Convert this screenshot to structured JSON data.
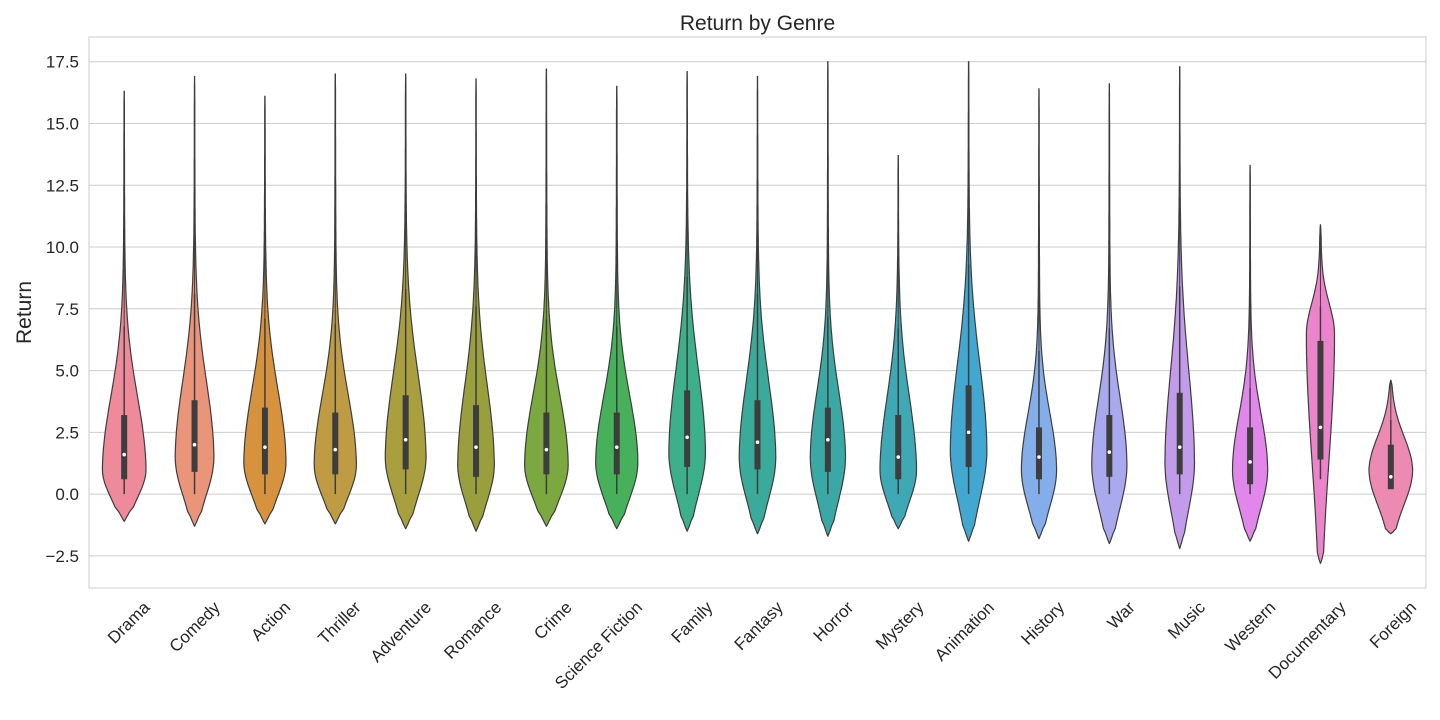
{
  "chart_data": {
    "type": "violin",
    "title": "Return by Genre",
    "xlabel": "",
    "ylabel": "Return",
    "ylim": [
      -3.8,
      18.5
    ],
    "yticks": [
      -2.5,
      0.0,
      2.5,
      5.0,
      7.5,
      10.0,
      12.5,
      15.0,
      17.5
    ],
    "ytick_labels": [
      "−2.5",
      "0.0",
      "2.5",
      "5.0",
      "7.5",
      "10.0",
      "12.5",
      "15.0",
      "17.5"
    ],
    "grid": true,
    "categories": [
      "Drama",
      "Comedy",
      "Action",
      "Thriller",
      "Adventure",
      "Romance",
      "Crime",
      "Science Fiction",
      "Family",
      "Fantasy",
      "Horror",
      "Mystery",
      "Animation",
      "History",
      "War",
      "Music",
      "Western",
      "Documentary",
      "Foreign"
    ],
    "colors": [
      "#ef8a9a",
      "#ea947a",
      "#d7923e",
      "#bf9b43",
      "#a99f3e",
      "#999f3c",
      "#7ba83f",
      "#46b15a",
      "#3bb08a",
      "#3aab9a",
      "#3aa9a6",
      "#3ea8b4",
      "#43a8d1",
      "#84aeea",
      "#a8a9ee",
      "#c29ceb",
      "#e186ea",
      "#ec84cb",
      "#ec8ab2"
    ],
    "violins": [
      {
        "min": -1.1,
        "max": 16.3,
        "q1": 0.6,
        "median": 1.6,
        "q3": 3.2,
        "whisker_lo": 0.0,
        "whisker_hi": 6.8,
        "mode": 1.0,
        "maxw": 0.62
      },
      {
        "min": -1.3,
        "max": 16.9,
        "q1": 0.9,
        "median": 2.0,
        "q3": 3.8,
        "whisker_lo": 0.0,
        "whisker_hi": 8.1,
        "mode": 1.5,
        "maxw": 0.55
      },
      {
        "min": -1.2,
        "max": 16.1,
        "q1": 0.8,
        "median": 1.9,
        "q3": 3.5,
        "whisker_lo": 0.0,
        "whisker_hi": 7.1,
        "mode": 1.3,
        "maxw": 0.6
      },
      {
        "min": -1.2,
        "max": 17.0,
        "q1": 0.8,
        "median": 1.8,
        "q3": 3.3,
        "whisker_lo": 0.0,
        "whisker_hi": 6.9,
        "mode": 1.2,
        "maxw": 0.6
      },
      {
        "min": -1.4,
        "max": 17.0,
        "q1": 1.0,
        "median": 2.2,
        "q3": 4.0,
        "whisker_lo": 0.0,
        "whisker_hi": 8.3,
        "mode": 1.5,
        "maxw": 0.58
      },
      {
        "min": -1.5,
        "max": 16.8,
        "q1": 0.7,
        "median": 1.9,
        "q3": 3.6,
        "whisker_lo": 0.0,
        "whisker_hi": 7.6,
        "mode": 1.2,
        "maxw": 0.52
      },
      {
        "min": -1.3,
        "max": 17.2,
        "q1": 0.8,
        "median": 1.8,
        "q3": 3.3,
        "whisker_lo": 0.0,
        "whisker_hi": 7.1,
        "mode": 1.2,
        "maxw": 0.62
      },
      {
        "min": -1.4,
        "max": 16.5,
        "q1": 0.8,
        "median": 1.9,
        "q3": 3.3,
        "whisker_lo": 0.0,
        "whisker_hi": 6.8,
        "mode": 1.3,
        "maxw": 0.6
      },
      {
        "min": -1.5,
        "max": 17.1,
        "q1": 1.1,
        "median": 2.3,
        "q3": 4.2,
        "whisker_lo": 0.0,
        "whisker_hi": 8.8,
        "mode": 1.7,
        "maxw": 0.52
      },
      {
        "min": -1.6,
        "max": 16.9,
        "q1": 1.0,
        "median": 2.1,
        "q3": 3.8,
        "whisker_lo": 0.0,
        "whisker_hi": 8.1,
        "mode": 1.5,
        "maxw": 0.52
      },
      {
        "min": -1.7,
        "max": 17.5,
        "q1": 0.9,
        "median": 2.2,
        "q3": 3.5,
        "whisker_lo": 0.0,
        "whisker_hi": 7.2,
        "mode": 1.5,
        "maxw": 0.5
      },
      {
        "min": -1.4,
        "max": 13.7,
        "q1": 0.6,
        "median": 1.5,
        "q3": 3.2,
        "whisker_lo": 0.0,
        "whisker_hi": 6.7,
        "mode": 1.0,
        "maxw": 0.52
      },
      {
        "min": -1.9,
        "max": 17.5,
        "q1": 1.1,
        "median": 2.5,
        "q3": 4.4,
        "whisker_lo": 0.0,
        "whisker_hi": 9.3,
        "mode": 1.8,
        "maxw": 0.52
      },
      {
        "min": -1.8,
        "max": 16.4,
        "q1": 0.6,
        "median": 1.5,
        "q3": 2.7,
        "whisker_lo": 0.0,
        "whisker_hi": 5.8,
        "mode": 1.0,
        "maxw": 0.5
      },
      {
        "min": -2.0,
        "max": 16.6,
        "q1": 0.7,
        "median": 1.7,
        "q3": 3.2,
        "whisker_lo": 0.0,
        "whisker_hi": 6.7,
        "mode": 1.2,
        "maxw": 0.5
      },
      {
        "min": -2.2,
        "max": 17.3,
        "q1": 0.8,
        "median": 1.9,
        "q3": 4.1,
        "whisker_lo": 0.0,
        "whisker_hi": 8.4,
        "mode": 1.3,
        "maxw": 0.42
      },
      {
        "min": -1.9,
        "max": 13.3,
        "q1": 0.4,
        "median": 1.3,
        "q3": 2.7,
        "whisker_lo": 0.0,
        "whisker_hi": 4.3,
        "mode": 1.0,
        "maxw": 0.5
      },
      {
        "min": -2.8,
        "max": 10.9,
        "q1": 1.4,
        "median": 2.7,
        "q3": 6.2,
        "whisker_lo": 0.6,
        "whisker_hi": 7.6,
        "mode": 6.5,
        "maxw": 0.4
      },
      {
        "min": -1.6,
        "max": 4.6,
        "q1": 0.2,
        "median": 0.7,
        "q3": 2.0,
        "whisker_lo": 0.2,
        "whisker_hi": 3.0,
        "mode": 1.0,
        "maxw": 0.62
      }
    ]
  }
}
